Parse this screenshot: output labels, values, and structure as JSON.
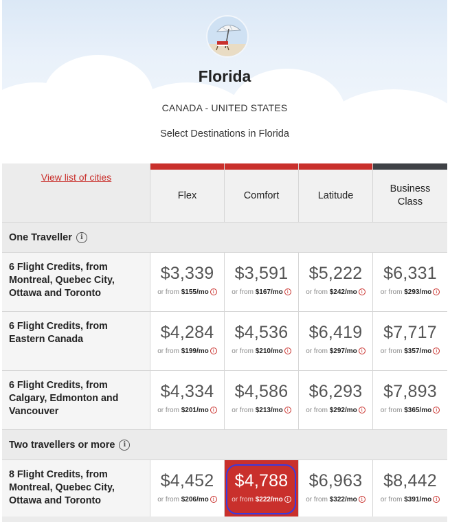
{
  "header": {
    "title": "Florida",
    "subtitle": "CANADA - UNITED STATES",
    "tagline": "Select Destinations in Florida",
    "avatar_icon": "beach-umbrella-icon"
  },
  "table": {
    "cities_link": "View list of cities",
    "columns": [
      {
        "label": "Flex",
        "bar_color": "#c9302c"
      },
      {
        "label": "Comfort",
        "bar_color": "#c9302c"
      },
      {
        "label": "Latitude",
        "bar_color": "#c9302c"
      },
      {
        "label": "Business Class",
        "bar_color": "#3f4246"
      }
    ],
    "monthly_prefix": "or from",
    "sections": [
      {
        "title": "One Traveller",
        "rows": [
          {
            "label": "6 Flight Credits, from Montreal, Quebec City, Ottawa and Toronto",
            "cells": [
              {
                "price": "$3,339",
                "monthly": "$155/mo"
              },
              {
                "price": "$3,591",
                "monthly": "$167/mo"
              },
              {
                "price": "$5,222",
                "monthly": "$242/mo"
              },
              {
                "price": "$6,331",
                "monthly": "$293/mo"
              }
            ]
          },
          {
            "label": "6 Flight Credits, from Eastern Canada",
            "cells": [
              {
                "price": "$4,284",
                "monthly": "$199/mo"
              },
              {
                "price": "$4,536",
                "monthly": "$210/mo"
              },
              {
                "price": "$6,419",
                "monthly": "$297/mo"
              },
              {
                "price": "$7,717",
                "monthly": "$357/mo"
              }
            ]
          },
          {
            "label": "6 Flight Credits, from Calgary, Edmonton and Vancouver",
            "cells": [
              {
                "price": "$4,334",
                "monthly": "$201/mo"
              },
              {
                "price": "$4,586",
                "monthly": "$213/mo"
              },
              {
                "price": "$6,293",
                "monthly": "$292/mo"
              },
              {
                "price": "$7,893",
                "monthly": "$365/mo"
              }
            ]
          }
        ]
      },
      {
        "title": "Two travellers or more",
        "rows": [
          {
            "label": "8 Flight Credits, from Montreal, Quebec City, Ottawa and Toronto",
            "cells": [
              {
                "price": "$4,452",
                "monthly": "$206/mo"
              },
              {
                "price": "$4,788",
                "monthly": "$222/mo",
                "selected": true
              },
              {
                "price": "$6,963",
                "monthly": "$322/mo"
              },
              {
                "price": "$8,442",
                "monthly": "$391/mo"
              }
            ]
          }
        ]
      }
    ]
  },
  "colors": {
    "accent": "#c9302c",
    "business_bar": "#3f4246",
    "selection_ring": "#3a3adf"
  }
}
